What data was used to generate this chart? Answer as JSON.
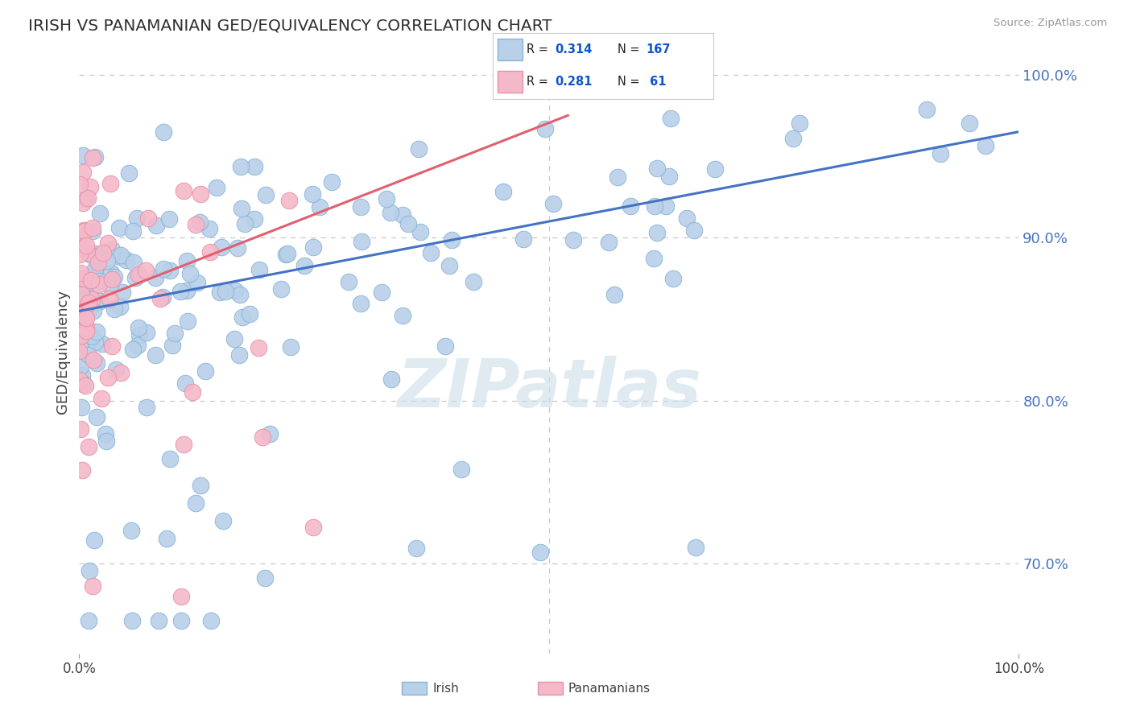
{
  "title": "IRISH VS PANAMANIAN GED/EQUIVALENCY CORRELATION CHART",
  "source": "Source: ZipAtlas.com",
  "ylabel": "GED/Equivalency",
  "xmin": 0.0,
  "xmax": 1.0,
  "ymin": 0.645,
  "ymax": 1.015,
  "irish_R": 0.314,
  "irish_N": 167,
  "pan_R": 0.281,
  "pan_N": 61,
  "irish_color": "#b8d0e8",
  "irish_edge": "#88b4d8",
  "pan_color": "#f5b8c8",
  "pan_edge": "#e890a8",
  "trend_irish_color": "#4472c4",
  "trend_pan_color": "#e06070",
  "background_color": "#ffffff",
  "grid_color": "#c8c8c8",
  "title_color": "#303030",
  "legend_R_color": "#1155cc",
  "legend_N_color": "#1155cc",
  "ytick_labels": [
    "70.0%",
    "80.0%",
    "90.0%",
    "100.0%"
  ],
  "ytick_values": [
    0.7,
    0.8,
    0.9,
    1.0
  ],
  "xtick_labels": [
    "0.0%",
    "100.0%"
  ],
  "xtick_values": [
    0.0,
    1.0
  ],
  "irish_trend_x0": 0.0,
  "irish_trend_x1": 1.0,
  "irish_trend_y0": 0.855,
  "irish_trend_y1": 0.965,
  "pan_trend_x0": 0.0,
  "pan_trend_x1": 0.52,
  "pan_trend_y0": 0.858,
  "pan_trend_y1": 0.975,
  "watermark": "ZIPatlas",
  "watermark_color": "#ccdde8"
}
